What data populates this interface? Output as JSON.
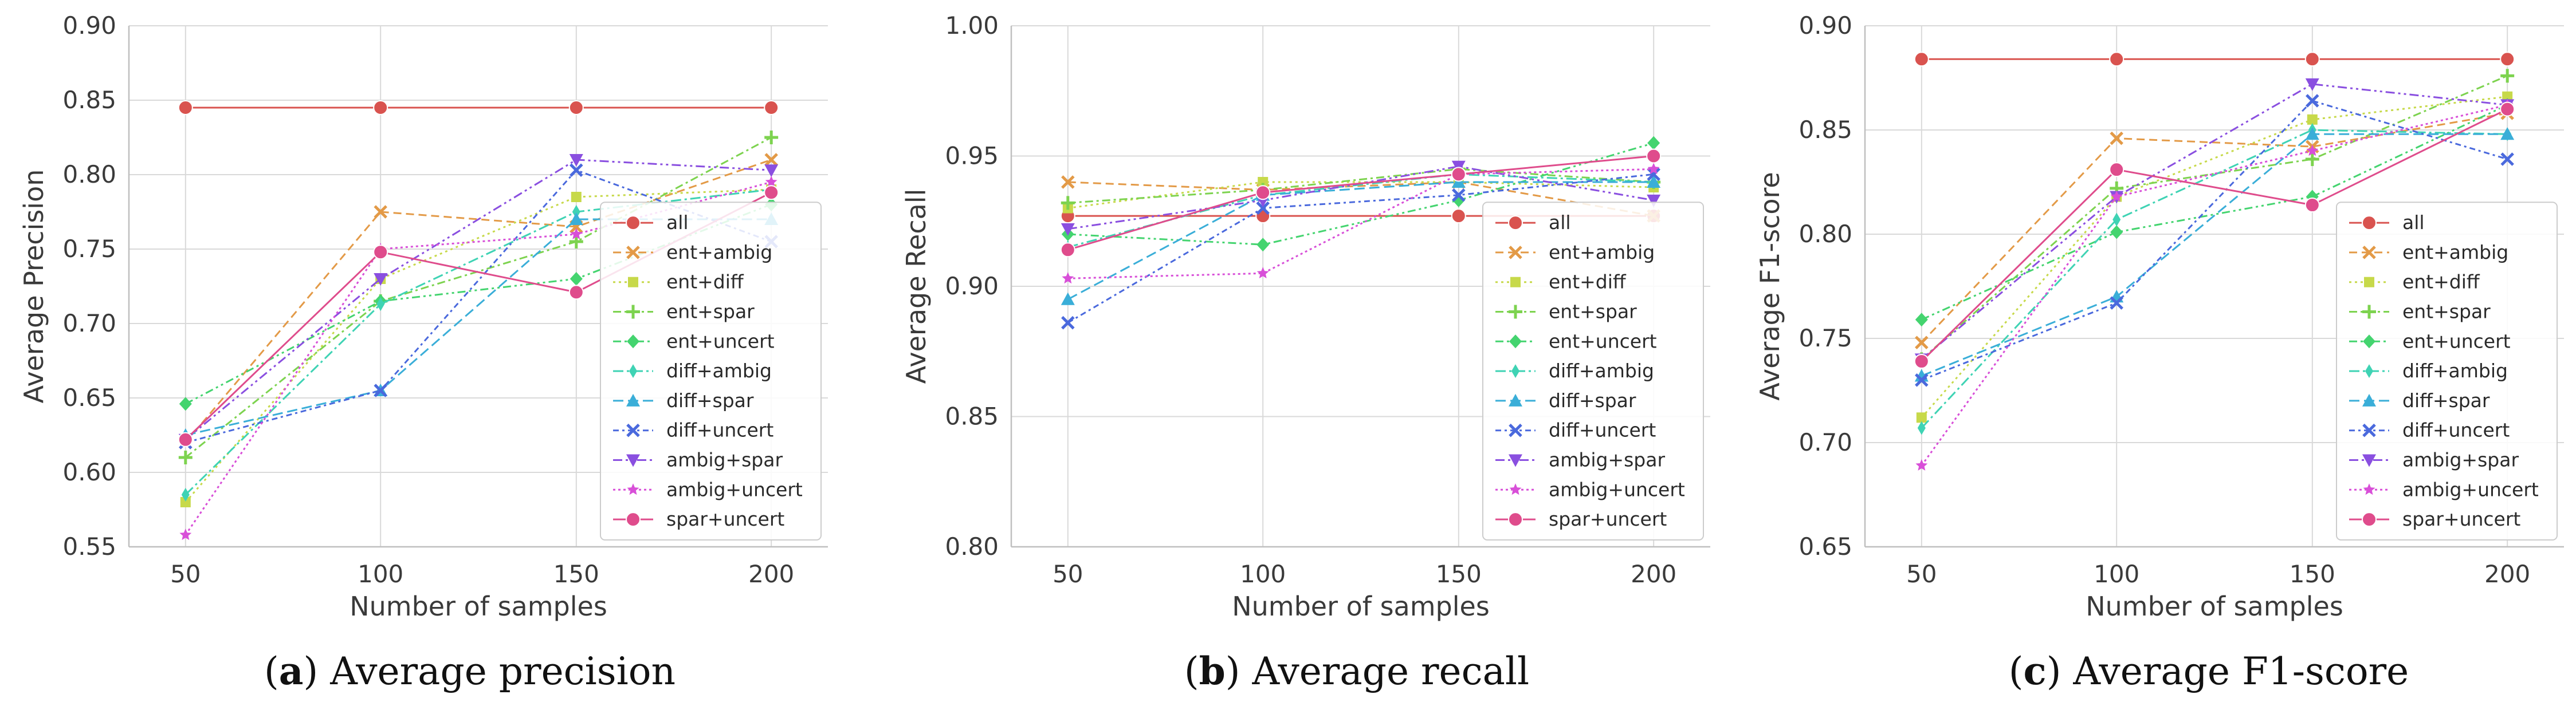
{
  "chart_data": [
    {
      "type": "line",
      "caption_letter": "a",
      "caption_text": "Average precision",
      "xlabel": "Number of samples",
      "ylabel": "Average Precision",
      "x": [
        50,
        100,
        150,
        200
      ],
      "xticks": [
        "50",
        "100",
        "150",
        "200"
      ],
      "ylim": [
        0.55,
        0.9
      ],
      "yticks": [
        "0.55",
        "0.60",
        "0.65",
        "0.70",
        "0.75",
        "0.80",
        "0.85",
        "0.90"
      ],
      "grid": true,
      "legend_position": "right",
      "series": [
        {
          "name": "all",
          "values": [
            0.845,
            0.845,
            0.845,
            0.845
          ]
        },
        {
          "name": "ent+ambig",
          "values": [
            0.62,
            0.775,
            0.765,
            0.81
          ]
        },
        {
          "name": "ent+diff",
          "values": [
            0.58,
            0.73,
            0.785,
            0.79
          ]
        },
        {
          "name": "ent+spar",
          "values": [
            0.61,
            0.715,
            0.755,
            0.825
          ]
        },
        {
          "name": "ent+uncert",
          "values": [
            0.646,
            0.715,
            0.73,
            0.78
          ]
        },
        {
          "name": "diff+ambig",
          "values": [
            0.585,
            0.713,
            0.775,
            0.79
          ]
        },
        {
          "name": "diff+spar",
          "values": [
            0.625,
            0.655,
            0.77,
            0.77
          ]
        },
        {
          "name": "diff+uncert",
          "values": [
            0.62,
            0.655,
            0.803,
            0.755
          ]
        },
        {
          "name": "ambig+spar",
          "values": [
            0.622,
            0.73,
            0.81,
            0.803
          ]
        },
        {
          "name": "ambig+uncert",
          "values": [
            0.558,
            0.75,
            0.76,
            0.795
          ]
        },
        {
          "name": "spar+uncert",
          "values": [
            0.622,
            0.748,
            0.721,
            0.788
          ]
        }
      ]
    },
    {
      "type": "line",
      "caption_letter": "b",
      "caption_text": "Average recall",
      "xlabel": "Number of samples",
      "ylabel": "Average Recall",
      "x": [
        50,
        100,
        150,
        200
      ],
      "xticks": [
        "50",
        "100",
        "150",
        "200"
      ],
      "ylim": [
        0.8,
        1.0
      ],
      "yticks": [
        "0.80",
        "0.85",
        "0.90",
        "0.95",
        "1.00"
      ],
      "grid": true,
      "legend_position": "right",
      "series": [
        {
          "name": "all",
          "values": [
            0.927,
            0.927,
            0.927,
            0.927
          ]
        },
        {
          "name": "ent+ambig",
          "values": [
            0.94,
            0.937,
            0.94,
            0.927
          ]
        },
        {
          "name": "ent+diff",
          "values": [
            0.93,
            0.94,
            0.94,
            0.938
          ]
        },
        {
          "name": "ent+spar",
          "values": [
            0.932,
            0.937,
            0.945,
            0.94
          ]
        },
        {
          "name": "ent+uncert",
          "values": [
            0.92,
            0.916,
            0.933,
            0.955
          ]
        },
        {
          "name": "diff+ambig",
          "values": [
            0.915,
            0.935,
            0.943,
            0.94
          ]
        },
        {
          "name": "diff+spar",
          "values": [
            0.895,
            0.935,
            0.94,
            0.94
          ]
        },
        {
          "name": "diff+uncert",
          "values": [
            0.886,
            0.93,
            0.935,
            0.943
          ]
        },
        {
          "name": "ambig+spar",
          "values": [
            0.922,
            0.933,
            0.946,
            0.933
          ]
        },
        {
          "name": "ambig+uncert",
          "values": [
            0.903,
            0.905,
            0.943,
            0.945
          ]
        },
        {
          "name": "spar+uncert",
          "values": [
            0.914,
            0.936,
            0.943,
            0.95
          ]
        }
      ]
    },
    {
      "type": "line",
      "caption_letter": "c",
      "caption_text": "Average F1-score",
      "xlabel": "Number of samples",
      "ylabel": "Average F1-score",
      "x": [
        50,
        100,
        150,
        200
      ],
      "xticks": [
        "50",
        "100",
        "150",
        "200"
      ],
      "ylim": [
        0.65,
        0.9
      ],
      "yticks": [
        "0.65",
        "0.70",
        "0.75",
        "0.80",
        "0.85",
        "0.90"
      ],
      "grid": true,
      "legend_position": "right",
      "series": [
        {
          "name": "all",
          "values": [
            0.884,
            0.884,
            0.884,
            0.884
          ]
        },
        {
          "name": "ent+ambig",
          "values": [
            0.748,
            0.846,
            0.842,
            0.858
          ]
        },
        {
          "name": "ent+diff",
          "values": [
            0.712,
            0.818,
            0.855,
            0.866
          ]
        },
        {
          "name": "ent+spar",
          "values": [
            0.74,
            0.822,
            0.836,
            0.876
          ]
        },
        {
          "name": "ent+uncert",
          "values": [
            0.759,
            0.801,
            0.818,
            0.862
          ]
        },
        {
          "name": "diff+ambig",
          "values": [
            0.707,
            0.807,
            0.85,
            0.848
          ]
        },
        {
          "name": "diff+spar",
          "values": [
            0.732,
            0.77,
            0.848,
            0.848
          ]
        },
        {
          "name": "diff+uncert",
          "values": [
            0.73,
            0.767,
            0.864,
            0.836
          ]
        },
        {
          "name": "ambig+spar",
          "values": [
            0.74,
            0.818,
            0.872,
            0.862
          ]
        },
        {
          "name": "ambig+uncert",
          "values": [
            0.689,
            0.818,
            0.84,
            0.862
          ]
        },
        {
          "name": "spar+uncert",
          "values": [
            0.739,
            0.831,
            0.814,
            0.86
          ]
        }
      ]
    }
  ],
  "styles": [
    {
      "color": "#d9534f",
      "marker": "circle",
      "dash": ""
    },
    {
      "color": "#e39a47",
      "marker": "x",
      "dash": "14,8"
    },
    {
      "color": "#c7d94a",
      "marker": "square",
      "dash": "4,6"
    },
    {
      "color": "#7dd34f",
      "marker": "plus",
      "dash": "14,6,4,6"
    },
    {
      "color": "#44d46f",
      "marker": "diamond",
      "dash": "14,6,4,6,4,6"
    },
    {
      "color": "#3fd3b4",
      "marker": "thin-diamond",
      "dash": "18,6,4,6"
    },
    {
      "color": "#3aaed8",
      "marker": "triangle-up",
      "dash": "18,8"
    },
    {
      "color": "#4a69dd",
      "marker": "x",
      "dash": "10,6,4,6"
    },
    {
      "color": "#8a4fe0",
      "marker": "triangle-down",
      "dash": "16,6,4,6,4,6"
    },
    {
      "color": "#d84fd8",
      "marker": "star",
      "dash": "4,5"
    },
    {
      "color": "#df4c8c",
      "marker": "circle",
      "dash": ""
    }
  ]
}
